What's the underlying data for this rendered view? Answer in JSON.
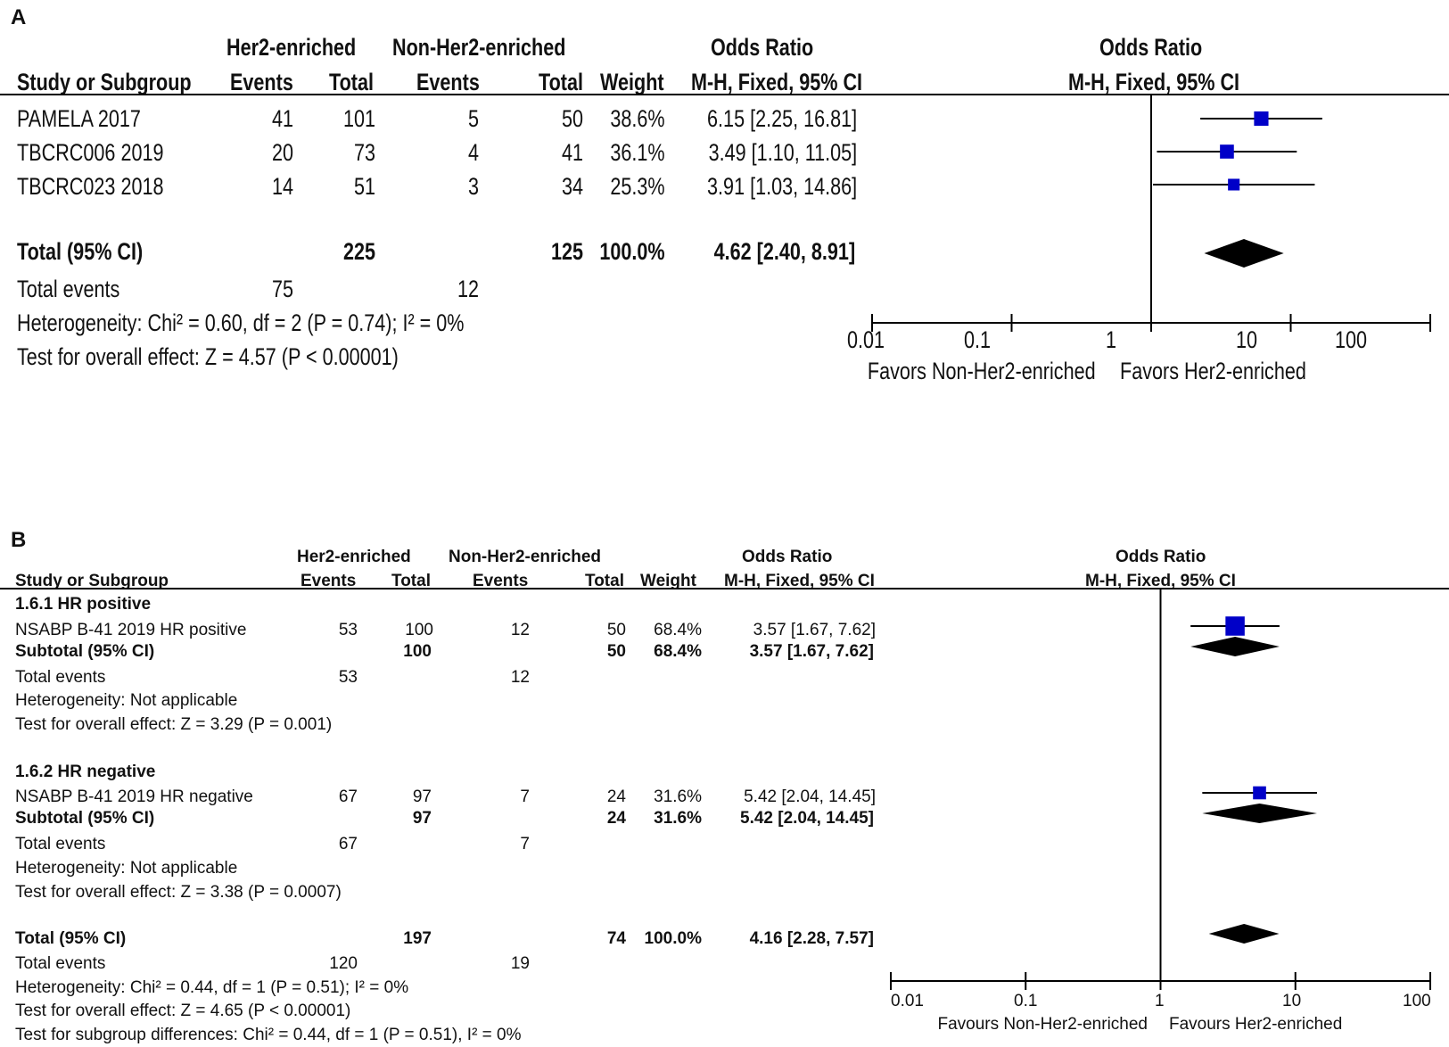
{
  "chart_data": [
    {
      "panel": "A",
      "type": "forest",
      "columns": {
        "study": "Study or Subgroup",
        "group1": "Her2-enriched",
        "group2": "Non-Her2-enriched",
        "events": "Events",
        "total": "Total",
        "weight": "Weight",
        "or_title": "Odds Ratio",
        "or_method": "M-H, Fixed, 95% CI"
      },
      "studies": [
        {
          "name": "PAMELA 2017",
          "e1": "41",
          "t1": "101",
          "e2": "5",
          "t2": "50",
          "weight": "38.6%",
          "ci_text": "6.15 [2.25, 16.81]",
          "or": 6.15,
          "lo": 2.25,
          "hi": 16.81,
          "w": 38.6
        },
        {
          "name": "TBCRC006 2019",
          "e1": "20",
          "t1": "73",
          "e2": "4",
          "t2": "41",
          "weight": "36.1%",
          "ci_text": "3.49 [1.10, 11.05]",
          "or": 3.49,
          "lo": 1.1,
          "hi": 11.05,
          "w": 36.1
        },
        {
          "name": "TBCRC023 2018",
          "e1": "14",
          "t1": "51",
          "e2": "3",
          "t2": "34",
          "weight": "25.3%",
          "ci_text": "3.91 [1.03, 14.86]",
          "or": 3.91,
          "lo": 1.03,
          "hi": 14.86,
          "w": 25.3
        }
      ],
      "total": {
        "label": "Total (95% CI)",
        "t1": "225",
        "t2": "125",
        "weight": "100.0%",
        "ci_text": "4.62 [2.40, 8.91]",
        "or": 4.62,
        "lo": 2.4,
        "hi": 8.91
      },
      "total_events": {
        "label": "Total events",
        "e1": "75",
        "e2": "12"
      },
      "heterogeneity": "Heterogeneity: Chi² = 0.60, df = 2 (P = 0.74); I² = 0%",
      "overall_effect": "Test for overall effect: Z = 4.57 (P < 0.00001)",
      "axis": {
        "scale": "log",
        "range": [
          0.01,
          100
        ],
        "ticks": [
          0.01,
          0.1,
          1,
          10,
          100
        ],
        "tick_labels": [
          "0.01",
          "0.1",
          "1",
          "10",
          "100"
        ],
        "favors_left": "Favors Non-Her2-enriched",
        "favors_right": "Favors Her2-enriched"
      }
    },
    {
      "panel": "B",
      "type": "forest",
      "columns": {
        "study": "Study or Subgroup",
        "group1": "Her2-enriched",
        "group2": "Non-Her2-enriched",
        "events": "Events",
        "total": "Total",
        "weight": "Weight",
        "or_title": "Odds Ratio",
        "or_method": "M-H, Fixed, 95% CI"
      },
      "subgroups": [
        {
          "title": "1.6.1 HR positive",
          "study": {
            "name": "NSABP B-41 2019 HR positive",
            "e1": "53",
            "t1": "100",
            "e2": "12",
            "t2": "50",
            "weight": "68.4%",
            "ci_text": "3.57 [1.67, 7.62]",
            "or": 3.57,
            "lo": 1.67,
            "hi": 7.62,
            "w": 68.4
          },
          "subtotal": {
            "label": "Subtotal (95% CI)",
            "t1": "100",
            "t2": "50",
            "weight": "68.4%",
            "ci_text": "3.57 [1.67, 7.62]",
            "or": 3.57,
            "lo": 1.67,
            "hi": 7.62
          },
          "total_events": {
            "label": "Total events",
            "e1": "53",
            "e2": "12"
          },
          "heterogeneity": "Heterogeneity: Not applicable",
          "overall_effect": "Test for overall effect: Z = 3.29 (P = 0.001)"
        },
        {
          "title": "1.6.2 HR negative",
          "study": {
            "name": "NSABP B-41 2019 HR negative",
            "e1": "67",
            "t1": "97",
            "e2": "7",
            "t2": "24",
            "weight": "31.6%",
            "ci_text": "5.42 [2.04, 14.45]",
            "or": 5.42,
            "lo": 2.04,
            "hi": 14.45,
            "w": 31.6
          },
          "subtotal": {
            "label": "Subtotal (95% CI)",
            "t1": "97",
            "t2": "24",
            "weight": "31.6%",
            "ci_text": "5.42 [2.04, 14.45]",
            "or": 5.42,
            "lo": 2.04,
            "hi": 14.45
          },
          "total_events": {
            "label": "Total events",
            "e1": "67",
            "e2": "7"
          },
          "heterogeneity": "Heterogeneity: Not applicable",
          "overall_effect": "Test for overall effect: Z = 3.38 (P = 0.0007)"
        }
      ],
      "total": {
        "label": "Total (95% CI)",
        "t1": "197",
        "t2": "74",
        "weight": "100.0%",
        "ci_text": "4.16 [2.28, 7.57]",
        "or": 4.16,
        "lo": 2.28,
        "hi": 7.57
      },
      "total_events": {
        "label": "Total events",
        "e1": "120",
        "e2": "19"
      },
      "heterogeneity": "Heterogeneity: Chi² = 0.44, df = 1 (P = 0.51); I² = 0%",
      "overall_effect": "Test for overall effect: Z = 4.65 (P < 0.00001)",
      "subgroup_diff": "Test for subgroup differences: Chi² = 0.44, df = 1 (P = 0.51), I² = 0%",
      "axis": {
        "scale": "log",
        "range": [
          0.01,
          100
        ],
        "ticks": [
          0.01,
          0.1,
          1,
          10,
          100
        ],
        "tick_labels": [
          "0.01",
          "0.1",
          "1",
          "10",
          "100"
        ],
        "favors_left": "Favours Non-Her2-enriched",
        "favors_right": "Favours Her2-enriched"
      }
    }
  ],
  "panels": {
    "a_label": "A",
    "b_label": "B"
  },
  "colors": {
    "marker": "#0000c8",
    "diamond": "#000000",
    "line": "#000000"
  }
}
